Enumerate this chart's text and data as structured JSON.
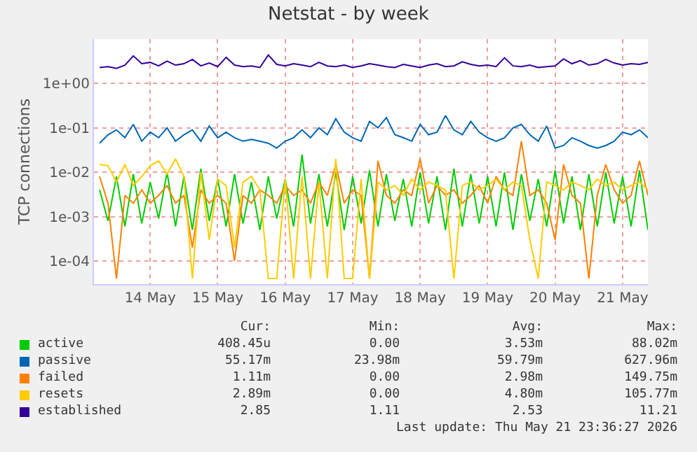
{
  "chart_data": {
    "type": "line",
    "title": "Netstat - by week",
    "ylabel": "TCP connections",
    "log": "y",
    "grid": true,
    "legend": "bottom",
    "marker": "none",
    "line_style": "solid",
    "ylim": [
      3e-05,
      10
    ],
    "yticks": [
      {
        "value": 0.0001,
        "label": "1e-04"
      },
      {
        "value": 0.001,
        "label": "1e-03"
      },
      {
        "value": 0.01,
        "label": "1e-02"
      },
      {
        "value": 0.1,
        "label": "1e-01"
      },
      {
        "value": 1,
        "label": "1e+00"
      }
    ],
    "xlim": [
      "2026-05-13T16:00",
      "2026-05-21T21:00"
    ],
    "xticks": [
      {
        "value": "2026-05-14T12:00",
        "label": "14 May"
      },
      {
        "value": "2026-05-15T12:00",
        "label": "15 May"
      },
      {
        "value": "2026-05-16T12:00",
        "label": "16 May"
      },
      {
        "value": "2026-05-17T12:00",
        "label": "17 May"
      },
      {
        "value": "2026-05-18T12:00",
        "label": "18 May"
      },
      {
        "value": "2026-05-19T12:00",
        "label": "19 May"
      },
      {
        "value": "2026-05-20T12:00",
        "label": "20 May"
      },
      {
        "value": "2026-05-21T12:00",
        "label": "21 May"
      }
    ],
    "x": [
      "2026-05-13T18:00",
      "2026-05-13T21:00",
      "2026-05-14T00:00",
      "2026-05-14T03:00",
      "2026-05-14T06:00",
      "2026-05-14T09:00",
      "2026-05-14T12:00",
      "2026-05-14T15:00",
      "2026-05-14T18:00",
      "2026-05-14T21:00",
      "2026-05-15T00:00",
      "2026-05-15T03:00",
      "2026-05-15T06:00",
      "2026-05-15T09:00",
      "2026-05-15T12:00",
      "2026-05-15T15:00",
      "2026-05-15T18:00",
      "2026-05-15T21:00",
      "2026-05-16T00:00",
      "2026-05-16T03:00",
      "2026-05-16T06:00",
      "2026-05-16T09:00",
      "2026-05-16T12:00",
      "2026-05-16T15:00",
      "2026-05-16T18:00",
      "2026-05-16T21:00",
      "2026-05-17T00:00",
      "2026-05-17T03:00",
      "2026-05-17T06:00",
      "2026-05-17T09:00",
      "2026-05-17T12:00",
      "2026-05-17T15:00",
      "2026-05-17T18:00",
      "2026-05-17T21:00",
      "2026-05-18T00:00",
      "2026-05-18T03:00",
      "2026-05-18T06:00",
      "2026-05-18T09:00",
      "2026-05-18T12:00",
      "2026-05-18T15:00",
      "2026-05-18T18:00",
      "2026-05-18T21:00",
      "2026-05-19T00:00",
      "2026-05-19T03:00",
      "2026-05-19T06:00",
      "2026-05-19T09:00",
      "2026-05-19T12:00",
      "2026-05-19T15:00",
      "2026-05-19T18:00",
      "2026-05-19T21:00",
      "2026-05-20T00:00",
      "2026-05-20T03:00",
      "2026-05-20T06:00",
      "2026-05-20T09:00",
      "2026-05-20T12:00",
      "2026-05-20T15:00",
      "2026-05-20T18:00",
      "2026-05-20T21:00",
      "2026-05-21T00:00",
      "2026-05-21T03:00",
      "2026-05-21T06:00",
      "2026-05-21T09:00",
      "2026-05-21T12:00",
      "2026-05-21T15:00",
      "2026-05-21T18:00",
      "2026-05-21T21:00"
    ],
    "series": [
      {
        "name": "active",
        "color": "#00cc00",
        "values": [
          0.004,
          0.0008,
          0.008,
          0.0006,
          0.009,
          0.0007,
          0.006,
          0.0009,
          0.01,
          0.0006,
          0.008,
          0.0005,
          0.012,
          0.0008,
          0.007,
          0.0006,
          0.009,
          0.0007,
          0.006,
          0.0005,
          0.008,
          0.0009,
          0.007,
          0.0006,
          0.025,
          0.0007,
          0.009,
          0.0006,
          0.01,
          0.0005,
          0.008,
          0.0007,
          0.011,
          0.0006,
          0.009,
          0.0008,
          0.007,
          0.0006,
          0.01,
          0.0007,
          0.008,
          0.0005,
          0.012,
          0.0006,
          0.009,
          0.0007,
          0.008,
          0.0006,
          0.01,
          0.0005,
          0.009,
          0.0008,
          0.007,
          0.0006,
          0.011,
          0.0007,
          0.008,
          0.0005,
          0.009,
          0.0006,
          0.01,
          0.0007,
          0.008,
          0.0006,
          0.011,
          0.0005
        ]
      },
      {
        "name": "passive",
        "color": "#0066b3",
        "values": [
          0.045,
          0.07,
          0.09,
          0.06,
          0.12,
          0.05,
          0.08,
          0.06,
          0.1,
          0.05,
          0.07,
          0.09,
          0.05,
          0.11,
          0.06,
          0.08,
          0.06,
          0.05,
          0.055,
          0.05,
          0.045,
          0.035,
          0.05,
          0.06,
          0.09,
          0.06,
          0.1,
          0.07,
          0.16,
          0.08,
          0.06,
          0.05,
          0.14,
          0.1,
          0.17,
          0.07,
          0.06,
          0.05,
          0.12,
          0.07,
          0.08,
          0.19,
          0.09,
          0.07,
          0.14,
          0.08,
          0.06,
          0.05,
          0.06,
          0.1,
          0.12,
          0.07,
          0.05,
          0.11,
          0.035,
          0.04,
          0.06,
          0.05,
          0.04,
          0.035,
          0.04,
          0.05,
          0.08,
          0.07,
          0.09,
          0.06
        ]
      },
      {
        "name": "failed",
        "color": "#ff8000",
        "values": [
          0.008,
          0.002,
          4e-05,
          0.003,
          0.002,
          0.004,
          0.002,
          0.003,
          0.005,
          0.002,
          0.003,
          0.0002,
          0.004,
          0.002,
          0.003,
          0.002,
          0.0001,
          0.003,
          0.002,
          0.004,
          0.003,
          0.002,
          0.005,
          0.003,
          0.004,
          0.002,
          0.006,
          0.003,
          0.015,
          0.002,
          0.004,
          0.003,
          4e-05,
          0.018,
          0.003,
          0.002,
          0.004,
          0.003,
          0.02,
          0.002,
          0.005,
          0.003,
          0.004,
          0.002,
          0.003,
          0.005,
          0.002,
          0.008,
          0.004,
          0.003,
          0.05,
          0.003,
          0.004,
          0.002,
          0.0003,
          0.015,
          0.003,
          0.002,
          4e-05,
          0.003,
          0.015,
          0.004,
          0.002,
          0.003,
          0.018,
          0.003
        ]
      },
      {
        "name": "resets",
        "color": "#ffcc00",
        "values": [
          0.015,
          0.014,
          0.006,
          0.015,
          0.005,
          0.008,
          0.014,
          0.018,
          0.009,
          0.02,
          0.008,
          4e-05,
          0.01,
          0.0003,
          0.007,
          0.005,
          0.0002,
          0.006,
          0.008,
          0.004,
          4e-05,
          4e-05,
          0.007,
          4e-05,
          0.008,
          4e-05,
          0.006,
          4e-05,
          0.02,
          4e-05,
          4e-05,
          0.007,
          4e-05,
          0.006,
          0.004,
          0.005,
          0.003,
          0.007,
          0.004,
          0.006,
          0.005,
          0.004,
          4e-05,
          0.005,
          0.006,
          0.004,
          0.005,
          0.007,
          0.004,
          0.006,
          0.005,
          0.0003,
          4e-05,
          0.006,
          0.005,
          0.004,
          0.006,
          0.005,
          0.004,
          0.007,
          0.005,
          0.006,
          0.004,
          0.005,
          0.006,
          0.004
        ]
      },
      {
        "name": "established",
        "color": "#330099",
        "values": [
          2.3,
          2.4,
          2.2,
          2.6,
          4.2,
          2.8,
          3.0,
          2.5,
          3.2,
          2.6,
          2.8,
          3.5,
          2.5,
          2.9,
          2.4,
          3.9,
          2.6,
          2.4,
          2.5,
          2.3,
          4.4,
          2.7,
          2.5,
          2.8,
          2.6,
          2.4,
          3.0,
          2.5,
          2.4,
          2.6,
          2.3,
          2.5,
          2.8,
          2.6,
          2.4,
          2.3,
          2.7,
          2.5,
          2.3,
          2.6,
          2.8,
          2.4,
          2.5,
          3.1,
          2.7,
          2.5,
          2.6,
          2.4,
          3.8,
          2.5,
          2.4,
          2.6,
          2.3,
          2.4,
          2.5,
          3.6,
          2.8,
          3.3,
          2.6,
          2.8,
          3.5,
          2.9,
          2.6,
          2.8,
          2.7,
          3.0
        ]
      }
    ],
    "annotations": [
      "Cur:",
      "Min:",
      "Avg:",
      "Max:",
      "408.45u",
      "0.00",
      "3.53m",
      "88.02m",
      "55.17m",
      "23.98m",
      "59.79m",
      "627.96m",
      "1.11m",
      "0.00",
      "2.98m",
      "149.75m",
      "2.89m",
      "0.00",
      "4.80m",
      "105.77m",
      "2.85",
      "1.11",
      "2.53",
      "11.21",
      "Last update: Thu May 21 23:36:27 2026"
    ]
  }
}
